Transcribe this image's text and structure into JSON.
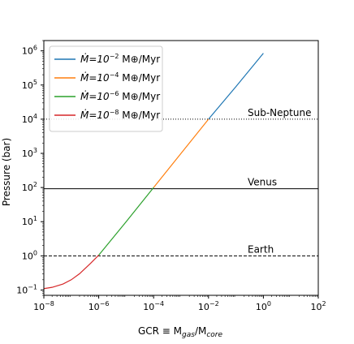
{
  "chart_data": {
    "type": "line",
    "xscale": "log",
    "yscale": "log",
    "xlim": [
      1e-08,
      100
    ],
    "ylim": [
      0.07,
      2000000.0
    ],
    "xlabel_parts": [
      "GCR ≡ M",
      "gas",
      "/M",
      "core"
    ],
    "ylabel": "Pressure (bar)",
    "x_ticks": [
      {
        "value": 1e-08,
        "base": "10",
        "exp": "−8"
      },
      {
        "value": 1e-06,
        "base": "10",
        "exp": "−6"
      },
      {
        "value": 0.0001,
        "base": "10",
        "exp": "−4"
      },
      {
        "value": 0.01,
        "base": "10",
        "exp": "−2"
      },
      {
        "value": 1,
        "base": "10",
        "exp": "0"
      },
      {
        "value": 100,
        "base": "10",
        "exp": "2"
      }
    ],
    "y_ticks": [
      {
        "value": 0.1,
        "base": "10",
        "exp": "−1"
      },
      {
        "value": 1,
        "base": "10",
        "exp": "0"
      },
      {
        "value": 10,
        "base": "10",
        "exp": "1"
      },
      {
        "value": 100,
        "base": "10",
        "exp": "2"
      },
      {
        "value": 1000,
        "base": "10",
        "exp": "3"
      },
      {
        "value": 10000,
        "base": "10",
        "exp": "4"
      },
      {
        "value": 100000,
        "base": "10",
        "exp": "5"
      },
      {
        "value": 1000000,
        "base": "10",
        "exp": "6"
      }
    ],
    "legend_position": "top-left",
    "series": [
      {
        "legend": {
          "pre": "Ṁ=10",
          "exp": "−2",
          "post": " M⊕/Myr"
        },
        "color": "#1f77b4",
        "points": [
          [
            0.01,
            10000
          ],
          [
            0.1,
            90000
          ],
          [
            1,
            850000
          ]
        ]
      },
      {
        "legend": {
          "pre": "Ṁ=10",
          "exp": "−4",
          "post": " M⊕/Myr"
        },
        "color": "#ff7f0e",
        "points": [
          [
            0.0001,
            100
          ],
          [
            0.001,
            1000
          ],
          [
            0.01,
            10000
          ]
        ]
      },
      {
        "legend": {
          "pre": "Ṁ=10",
          "exp": "−6",
          "post": " M⊕/Myr"
        },
        "color": "#2ca02c",
        "points": [
          [
            1e-06,
            1.05
          ],
          [
            1e-05,
            10
          ],
          [
            0.0001,
            100
          ]
        ]
      },
      {
        "legend": {
          "pre": "Ṁ=10",
          "exp": "−8",
          "post": " M⊕/Myr"
        },
        "color": "#d62728",
        "points": [
          [
            1e-08,
            0.11
          ],
          [
            2e-08,
            0.12
          ],
          [
            5e-08,
            0.15
          ],
          [
            1e-07,
            0.2
          ],
          [
            2e-07,
            0.3
          ],
          [
            5e-07,
            0.6
          ],
          [
            1e-06,
            1.05
          ]
        ]
      }
    ],
    "reference_lines": [
      {
        "label": "Sub-Neptune",
        "y": 10000,
        "style": "dotted"
      },
      {
        "label": "Venus",
        "y": 92,
        "style": "solid"
      },
      {
        "label": "Earth",
        "y": 1,
        "style": "dashed"
      }
    ]
  }
}
